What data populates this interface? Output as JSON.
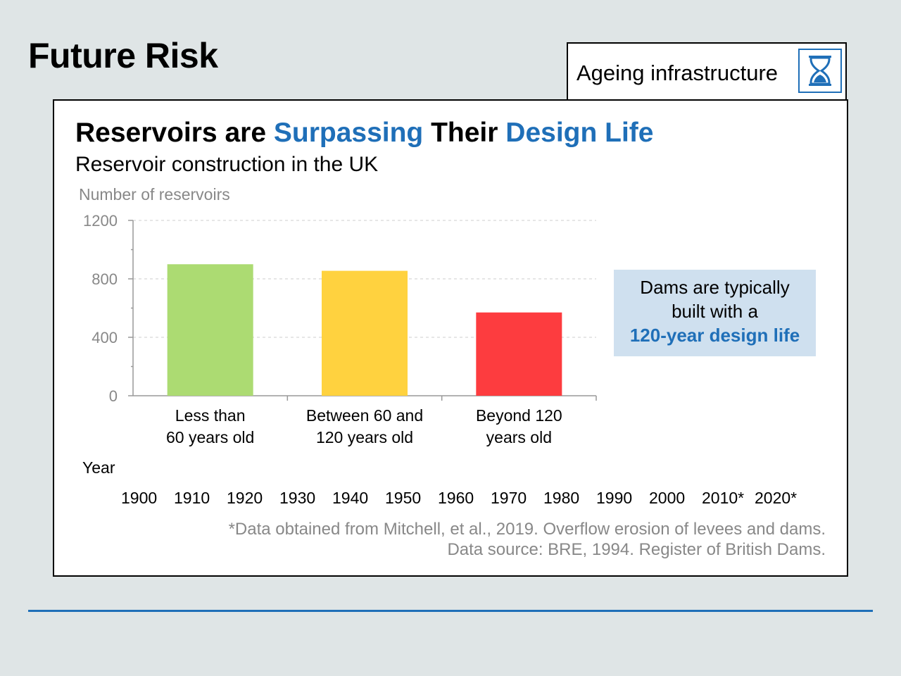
{
  "slide": {
    "title": "Future Risk",
    "tag": {
      "label": "Ageing infrastructure",
      "icon": "hourglass-icon"
    }
  },
  "panel": {
    "headline": {
      "part1": "Reservoirs are ",
      "part2": "Surpassing",
      "part3": " Their ",
      "part4": "Design Life"
    },
    "subtitle": "Reservoir construction in the UK",
    "callout": {
      "line1": "Dams are typically",
      "line2": "built with a",
      "highlight": "120-year design life"
    },
    "timeline": {
      "label": "Year",
      "years": [
        "1900",
        "1910",
        "1920",
        "1930",
        "1940",
        "1950",
        "1960",
        "1970",
        "1980",
        "1990",
        "2000",
        "2010*",
        "2020*"
      ]
    },
    "source": {
      "line1": "*Data obtained from Mitchell, et al., 2019. Overflow erosion of levees and dams.",
      "line2": "Data source: BRE, 1994. Register of British Dams."
    }
  },
  "chart_data": {
    "type": "bar",
    "title": "Reservoir construction in the UK",
    "ylabel": "Number of reservoirs",
    "xlabel": "",
    "ylim": [
      0,
      1200
    ],
    "yticks": [
      0,
      400,
      800,
      1200
    ],
    "grid": true,
    "categories": [
      [
        "Less than",
        "60 years old"
      ],
      [
        "Between 60 and",
        "120 years old"
      ],
      [
        "Beyond 120",
        "years old"
      ]
    ],
    "values": [
      900,
      855,
      570
    ],
    "colors": [
      "#acdb72",
      "#ffd23f",
      "#fd3c3f"
    ]
  },
  "colors": {
    "accent": "#1f6fb8",
    "callout_bg": "#cfe0ef",
    "background": "#dfe5e6"
  }
}
